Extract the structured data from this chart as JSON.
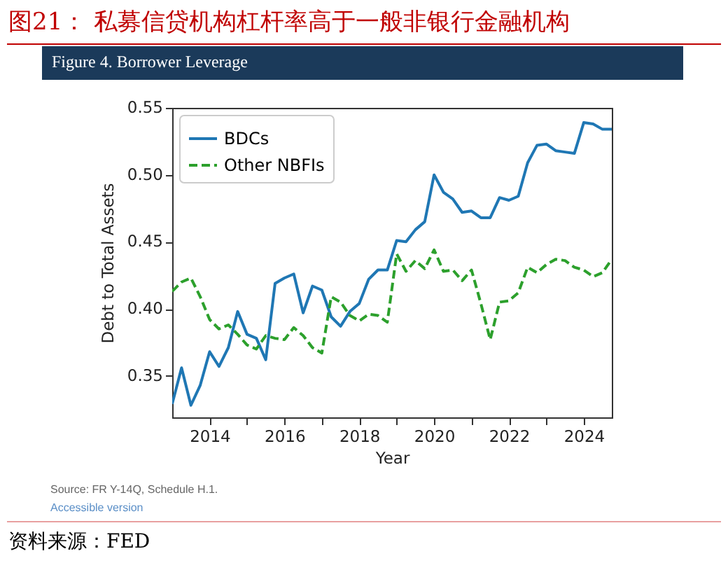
{
  "chart_data": {
    "type": "line",
    "title": "图21：  私募信贷机构杠杆率高于一般非银行金融机构",
    "subtitle": "Figure 4. Borrower Leverage",
    "xlabel": "Year",
    "ylabel": "Debt to Total Assets",
    "x": [
      2013,
      2013.25,
      2013.5,
      2013.75,
      2014,
      2014.25,
      2014.5,
      2014.75,
      2015,
      2015.25,
      2015.5,
      2015.75,
      2016,
      2016.25,
      2016.5,
      2016.75,
      2017,
      2017.25,
      2017.5,
      2017.75,
      2018,
      2018.25,
      2018.5,
      2018.75,
      2019,
      2019.25,
      2019.5,
      2019.75,
      2020,
      2020.25,
      2020.5,
      2020.75,
      2021,
      2021.25,
      2021.5,
      2021.75,
      2022,
      2022.25,
      2022.5,
      2022.75,
      2023,
      2023.25,
      2023.5,
      2023.75,
      2024,
      2024.25,
      2024.5,
      2024.75
    ],
    "series": [
      {
        "name": "BDCs",
        "color": "#1f77b4",
        "line_style": "solid",
        "values": [
          0.329,
          0.356,
          0.328,
          0.343,
          0.368,
          0.357,
          0.371,
          0.398,
          0.381,
          0.378,
          0.362,
          0.419,
          0.423,
          0.426,
          0.397,
          0.417,
          0.414,
          0.394,
          0.387,
          0.398,
          0.404,
          0.422,
          0.429,
          0.429,
          0.451,
          0.45,
          0.459,
          0.465,
          0.5,
          0.487,
          0.482,
          0.472,
          0.473,
          0.468,
          0.468,
          0.483,
          0.481,
          0.484,
          0.509,
          0.522,
          0.523,
          0.518,
          0.517,
          0.516,
          0.539,
          0.538,
          0.534,
          0.534
        ]
      },
      {
        "name": "Other NBFIs",
        "color": "#2ca02c",
        "line_style": "dashed",
        "values": [
          0.413,
          0.42,
          0.423,
          0.409,
          0.392,
          0.385,
          0.388,
          0.381,
          0.373,
          0.37,
          0.38,
          0.378,
          0.377,
          0.386,
          0.38,
          0.371,
          0.367,
          0.409,
          0.405,
          0.395,
          0.391,
          0.396,
          0.395,
          0.39,
          0.441,
          0.428,
          0.436,
          0.43,
          0.444,
          0.428,
          0.429,
          0.421,
          0.429,
          0.404,
          0.377,
          0.405,
          0.406,
          0.412,
          0.431,
          0.427,
          0.433,
          0.437,
          0.436,
          0.431,
          0.429,
          0.424,
          0.427,
          0.437
        ]
      }
    ],
    "xlim": [
      2013,
      2024.75
    ],
    "xticks": [
      2014,
      {
        "value": 2015,
        "label": null
      },
      2016,
      {
        "value": 2017,
        "label": null
      },
      2018,
      {
        "value": 2019,
        "label": null
      },
      2020,
      {
        "value": 2021,
        "label": null
      },
      2022,
      {
        "value": 2023,
        "label": null
      },
      2024
    ],
    "ylim": [
      0.319,
      0.55
    ],
    "yticks": [
      {
        "value": 0.35,
        "label": "0.35"
      },
      {
        "value": 0.4,
        "label": "0.40"
      },
      {
        "value": 0.45,
        "label": "0.45"
      },
      {
        "value": 0.5,
        "label": "0.50"
      },
      {
        "value": 0.55,
        "label": "0.55"
      }
    ],
    "grid": false,
    "legend": "top left",
    "annotations": [
      "Source: FR Y-14Q, Schedule H.1.",
      "Accessible version",
      "资料来源：FED"
    ]
  }
}
